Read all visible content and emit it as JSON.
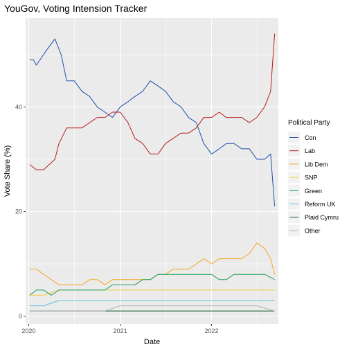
{
  "chart_data": {
    "type": "line",
    "title": "YouGov, Voting Intension Tracker",
    "xlabel": "Date",
    "ylabel": "Vote Share (%)",
    "x_ticks": [
      "2020",
      "2021",
      "2022"
    ],
    "y_ticks": [
      0,
      20,
      40
    ],
    "xlim": [
      "2019-12-20",
      "2022-09-25"
    ],
    "ylim": [
      -1.5,
      57
    ],
    "grid": true,
    "legend_title": "Political Party",
    "legend_position": "right",
    "series": [
      {
        "name": "Con",
        "color": "#1f4fa8",
        "points": [
          [
            "2020-01-05",
            49
          ],
          [
            "2020-01-20",
            49
          ],
          [
            "2020-02-01",
            48
          ],
          [
            "2020-03-15",
            51
          ],
          [
            "2020-04-15",
            53
          ],
          [
            "2020-05-10",
            50
          ],
          [
            "2020-06-01",
            45
          ],
          [
            "2020-07-01",
            45
          ],
          [
            "2020-08-01",
            43
          ],
          [
            "2020-09-01",
            42
          ],
          [
            "2020-10-01",
            40
          ],
          [
            "2020-11-01",
            39
          ],
          [
            "2020-12-01",
            38
          ],
          [
            "2021-01-01",
            40
          ],
          [
            "2021-02-01",
            41
          ],
          [
            "2021-03-01",
            42
          ],
          [
            "2021-04-01",
            43
          ],
          [
            "2021-05-01",
            45
          ],
          [
            "2021-06-01",
            44
          ],
          [
            "2021-07-01",
            43
          ],
          [
            "2021-08-01",
            41
          ],
          [
            "2021-09-01",
            40
          ],
          [
            "2021-10-01",
            38
          ],
          [
            "2021-11-01",
            37
          ],
          [
            "2021-12-01",
            33
          ],
          [
            "2022-01-01",
            31
          ],
          [
            "2022-02-01",
            32
          ],
          [
            "2022-03-01",
            33
          ],
          [
            "2022-04-01",
            33
          ],
          [
            "2022-05-01",
            32
          ],
          [
            "2022-06-01",
            32
          ],
          [
            "2022-07-01",
            30
          ],
          [
            "2022-08-01",
            30
          ],
          [
            "2022-08-25",
            31
          ],
          [
            "2022-09-10",
            21
          ]
        ]
      },
      {
        "name": "Lab",
        "color": "#b71c1c",
        "points": [
          [
            "2020-01-05",
            29
          ],
          [
            "2020-02-01",
            28
          ],
          [
            "2020-03-01",
            28
          ],
          [
            "2020-04-15",
            30
          ],
          [
            "2020-05-01",
            33
          ],
          [
            "2020-06-01",
            36
          ],
          [
            "2020-07-01",
            36
          ],
          [
            "2020-08-01",
            36
          ],
          [
            "2020-09-01",
            37
          ],
          [
            "2020-10-01",
            38
          ],
          [
            "2020-11-01",
            38
          ],
          [
            "2020-12-01",
            39
          ],
          [
            "2021-01-01",
            39
          ],
          [
            "2021-02-01",
            37
          ],
          [
            "2021-03-01",
            34
          ],
          [
            "2021-04-01",
            33
          ],
          [
            "2021-05-01",
            31
          ],
          [
            "2021-06-01",
            31
          ],
          [
            "2021-07-01",
            33
          ],
          [
            "2021-08-01",
            34
          ],
          [
            "2021-09-01",
            35
          ],
          [
            "2021-10-01",
            35
          ],
          [
            "2021-11-01",
            36
          ],
          [
            "2021-12-01",
            38
          ],
          [
            "2022-01-01",
            38
          ],
          [
            "2022-02-01",
            39
          ],
          [
            "2022-03-01",
            38
          ],
          [
            "2022-04-01",
            38
          ],
          [
            "2022-05-01",
            38
          ],
          [
            "2022-06-01",
            37
          ],
          [
            "2022-07-01",
            38
          ],
          [
            "2022-08-01",
            40
          ],
          [
            "2022-08-25",
            43
          ],
          [
            "2022-09-10",
            54
          ]
        ]
      },
      {
        "name": "Lib Dem",
        "color": "#f5a623",
        "points": [
          [
            "2020-01-05",
            9
          ],
          [
            "2020-02-01",
            9
          ],
          [
            "2020-03-01",
            8
          ],
          [
            "2020-04-01",
            7
          ],
          [
            "2020-05-01",
            6
          ],
          [
            "2020-06-01",
            6
          ],
          [
            "2020-07-01",
            6
          ],
          [
            "2020-08-01",
            6
          ],
          [
            "2020-09-01",
            7
          ],
          [
            "2020-10-01",
            7
          ],
          [
            "2020-11-01",
            6
          ],
          [
            "2020-12-01",
            7
          ],
          [
            "2021-01-01",
            7
          ],
          [
            "2021-02-01",
            7
          ],
          [
            "2021-03-01",
            7
          ],
          [
            "2021-04-01",
            7
          ],
          [
            "2021-05-01",
            7
          ],
          [
            "2021-06-01",
            8
          ],
          [
            "2021-07-01",
            8
          ],
          [
            "2021-08-01",
            9
          ],
          [
            "2021-09-01",
            9
          ],
          [
            "2021-10-01",
            9
          ],
          [
            "2021-11-01",
            10
          ],
          [
            "2021-12-01",
            11
          ],
          [
            "2022-01-01",
            10
          ],
          [
            "2022-02-01",
            11
          ],
          [
            "2022-03-01",
            11
          ],
          [
            "2022-04-01",
            11
          ],
          [
            "2022-05-01",
            11
          ],
          [
            "2022-06-01",
            12
          ],
          [
            "2022-07-01",
            14
          ],
          [
            "2022-08-01",
            13
          ],
          [
            "2022-08-25",
            11
          ],
          [
            "2022-09-10",
            8
          ]
        ]
      },
      {
        "name": "SNP",
        "color": "#f4d03f",
        "points": [
          [
            "2020-01-05",
            4
          ],
          [
            "2020-03-01",
            4
          ],
          [
            "2020-05-01",
            5
          ],
          [
            "2020-07-01",
            5
          ],
          [
            "2020-09-01",
            5
          ],
          [
            "2020-11-01",
            5
          ],
          [
            "2021-01-01",
            5
          ],
          [
            "2021-03-01",
            5
          ],
          [
            "2021-05-01",
            5
          ],
          [
            "2021-07-01",
            5
          ],
          [
            "2021-09-01",
            5
          ],
          [
            "2021-11-01",
            5
          ],
          [
            "2022-01-01",
            5
          ],
          [
            "2022-03-01",
            5
          ],
          [
            "2022-05-01",
            5
          ],
          [
            "2022-07-01",
            5
          ],
          [
            "2022-09-10",
            5
          ]
        ]
      },
      {
        "name": "Green",
        "color": "#1e9e5a",
        "points": [
          [
            "2020-01-05",
            4
          ],
          [
            "2020-02-01",
            5
          ],
          [
            "2020-03-01",
            5
          ],
          [
            "2020-04-01",
            4
          ],
          [
            "2020-05-01",
            5
          ],
          [
            "2020-06-01",
            5
          ],
          [
            "2020-07-01",
            5
          ],
          [
            "2020-08-01",
            5
          ],
          [
            "2020-09-01",
            5
          ],
          [
            "2020-10-01",
            5
          ],
          [
            "2020-11-01",
            5
          ],
          [
            "2020-12-01",
            6
          ],
          [
            "2021-01-01",
            6
          ],
          [
            "2021-02-01",
            6
          ],
          [
            "2021-03-01",
            6
          ],
          [
            "2021-04-01",
            7
          ],
          [
            "2021-05-01",
            7
          ],
          [
            "2021-06-01",
            8
          ],
          [
            "2021-07-01",
            8
          ],
          [
            "2021-08-01",
            8
          ],
          [
            "2021-09-01",
            8
          ],
          [
            "2021-10-01",
            8
          ],
          [
            "2021-11-01",
            8
          ],
          [
            "2021-12-01",
            8
          ],
          [
            "2022-01-01",
            8
          ],
          [
            "2022-02-01",
            7
          ],
          [
            "2022-03-01",
            7
          ],
          [
            "2022-04-01",
            8
          ],
          [
            "2022-05-01",
            8
          ],
          [
            "2022-06-01",
            8
          ],
          [
            "2022-07-01",
            8
          ],
          [
            "2022-08-01",
            8
          ],
          [
            "2022-09-10",
            7
          ]
        ]
      },
      {
        "name": "Reform UK",
        "color": "#5bc0de",
        "points": [
          [
            "2020-01-05",
            2
          ],
          [
            "2020-03-01",
            2
          ],
          [
            "2020-05-01",
            3
          ],
          [
            "2020-07-01",
            3
          ],
          [
            "2020-09-01",
            3
          ],
          [
            "2020-11-01",
            3
          ],
          [
            "2021-01-01",
            3
          ],
          [
            "2021-03-01",
            3
          ],
          [
            "2021-05-01",
            3
          ],
          [
            "2021-07-01",
            3
          ],
          [
            "2021-09-01",
            3
          ],
          [
            "2021-11-01",
            3
          ],
          [
            "2022-01-01",
            3
          ],
          [
            "2022-03-01",
            3
          ],
          [
            "2022-05-01",
            3
          ],
          [
            "2022-07-01",
            3
          ],
          [
            "2022-09-10",
            3
          ]
        ]
      },
      {
        "name": "Plaid Cymru",
        "color": "#0b5d2a",
        "points": [
          [
            "2020-01-05",
            1
          ],
          [
            "2020-06-01",
            1
          ],
          [
            "2021-01-01",
            1
          ],
          [
            "2021-06-01",
            1
          ],
          [
            "2022-01-01",
            1
          ],
          [
            "2022-06-01",
            1
          ],
          [
            "2022-09-10",
            1
          ]
        ]
      },
      {
        "name": "Other",
        "color": "#b3b3b3",
        "points": [
          [
            "2020-01-05",
            1
          ],
          [
            "2020-03-01",
            1
          ],
          [
            "2020-05-01",
            1
          ],
          [
            "2020-07-01",
            1
          ],
          [
            "2020-09-01",
            1
          ],
          [
            "2020-11-01",
            1
          ],
          [
            "2021-01-01",
            2
          ],
          [
            "2021-03-01",
            2
          ],
          [
            "2021-05-01",
            2
          ],
          [
            "2021-07-01",
            2
          ],
          [
            "2021-09-01",
            2
          ],
          [
            "2021-11-01",
            2
          ],
          [
            "2022-01-01",
            2
          ],
          [
            "2022-03-01",
            2
          ],
          [
            "2022-05-01",
            2
          ],
          [
            "2022-07-01",
            2
          ],
          [
            "2022-09-10",
            1
          ]
        ]
      }
    ]
  }
}
